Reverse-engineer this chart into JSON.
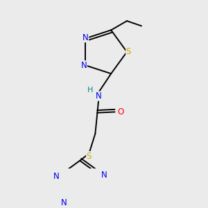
{
  "bg_color": "#ebebeb",
  "atom_colors": {
    "C": "#000000",
    "N": "#0000ee",
    "S": "#ccaa00",
    "O": "#ff0000",
    "H": "#008888"
  },
  "bond_color": "#000000",
  "bond_width": 1.4,
  "font_size_atom": 8.5,
  "title": ""
}
